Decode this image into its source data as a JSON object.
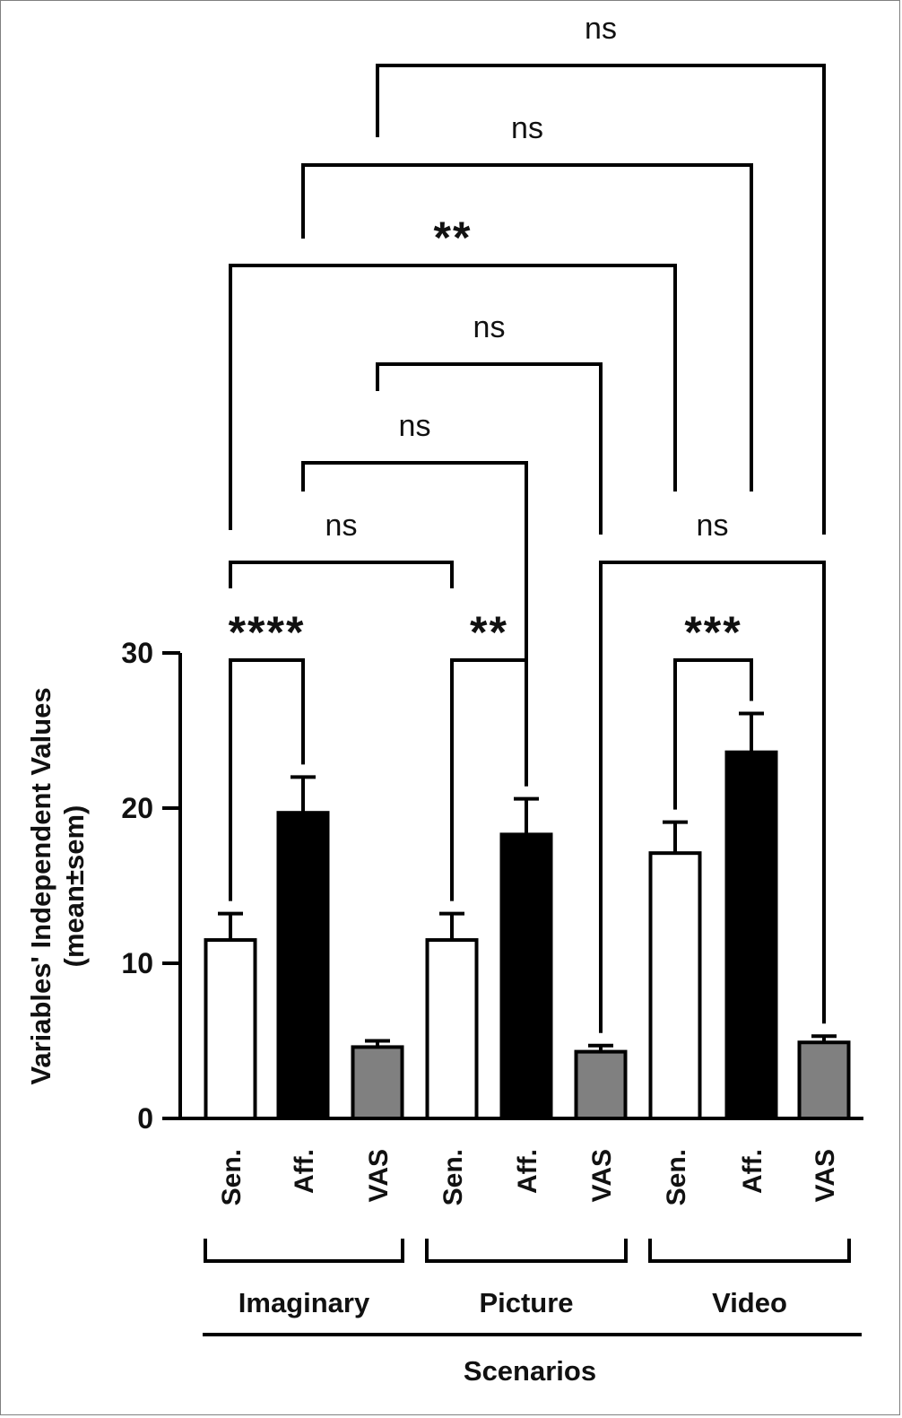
{
  "chart_data": {
    "type": "bar",
    "title": "",
    "ylabel": "Variables' Independent Values",
    "ylabel_sub": "(mean±sem)",
    "xlabel": "Scenarios",
    "ylim": [
      0,
      30
    ],
    "yticks": [
      0,
      10,
      20,
      30
    ],
    "groups": [
      {
        "name": "Imaginary",
        "bars": [
          {
            "label": "Sen.",
            "value": 11.5,
            "sem": 1.7,
            "color": "#ffffff"
          },
          {
            "label": "Aff.",
            "value": 19.7,
            "sem": 2.3,
            "color": "#000000"
          },
          {
            "label": "VAS",
            "value": 4.6,
            "sem": 0.4,
            "color": "#808080"
          }
        ]
      },
      {
        "name": "Picture",
        "bars": [
          {
            "label": "Sen.",
            "value": 11.5,
            "sem": 1.7,
            "color": "#ffffff"
          },
          {
            "label": "Aff.",
            "value": 18.3,
            "sem": 2.3,
            "color": "#000000"
          },
          {
            "label": "VAS",
            "value": 4.3,
            "sem": 0.4,
            "color": "#808080"
          }
        ]
      },
      {
        "name": "Video",
        "bars": [
          {
            "label": "Sen.",
            "value": 17.1,
            "sem": 2.0,
            "color": "#ffffff"
          },
          {
            "label": "Aff.",
            "value": 23.6,
            "sem": 2.5,
            "color": "#000000"
          },
          {
            "label": "VAS",
            "value": 4.9,
            "sem": 0.4,
            "color": "#808080"
          }
        ]
      }
    ],
    "comparisons": [
      {
        "a": "Imaginary Sen.",
        "b": "Imaginary Aff.",
        "label": "****"
      },
      {
        "a": "Picture Sen.",
        "b": "Picture Aff.",
        "label": "**"
      },
      {
        "a": "Video Sen.",
        "b": "Video Aff.",
        "label": "***"
      },
      {
        "a": "Imaginary Sen.",
        "b": "Picture Sen.",
        "label": "ns"
      },
      {
        "a": "Picture VAS",
        "b": "Video VAS",
        "label": "ns"
      },
      {
        "a": "Imaginary Aff.",
        "b": "Picture Aff.",
        "label": "ns"
      },
      {
        "a": "Imaginary VAS",
        "b": "Picture VAS",
        "label": "ns"
      },
      {
        "a": "Imaginary Sen.",
        "b": "Video Sen.",
        "label": "**"
      },
      {
        "a": "Imaginary Aff.",
        "b": "Video Aff.",
        "label": "ns"
      },
      {
        "a": "Imaginary VAS",
        "b": "Video VAS",
        "label": "ns"
      }
    ]
  }
}
